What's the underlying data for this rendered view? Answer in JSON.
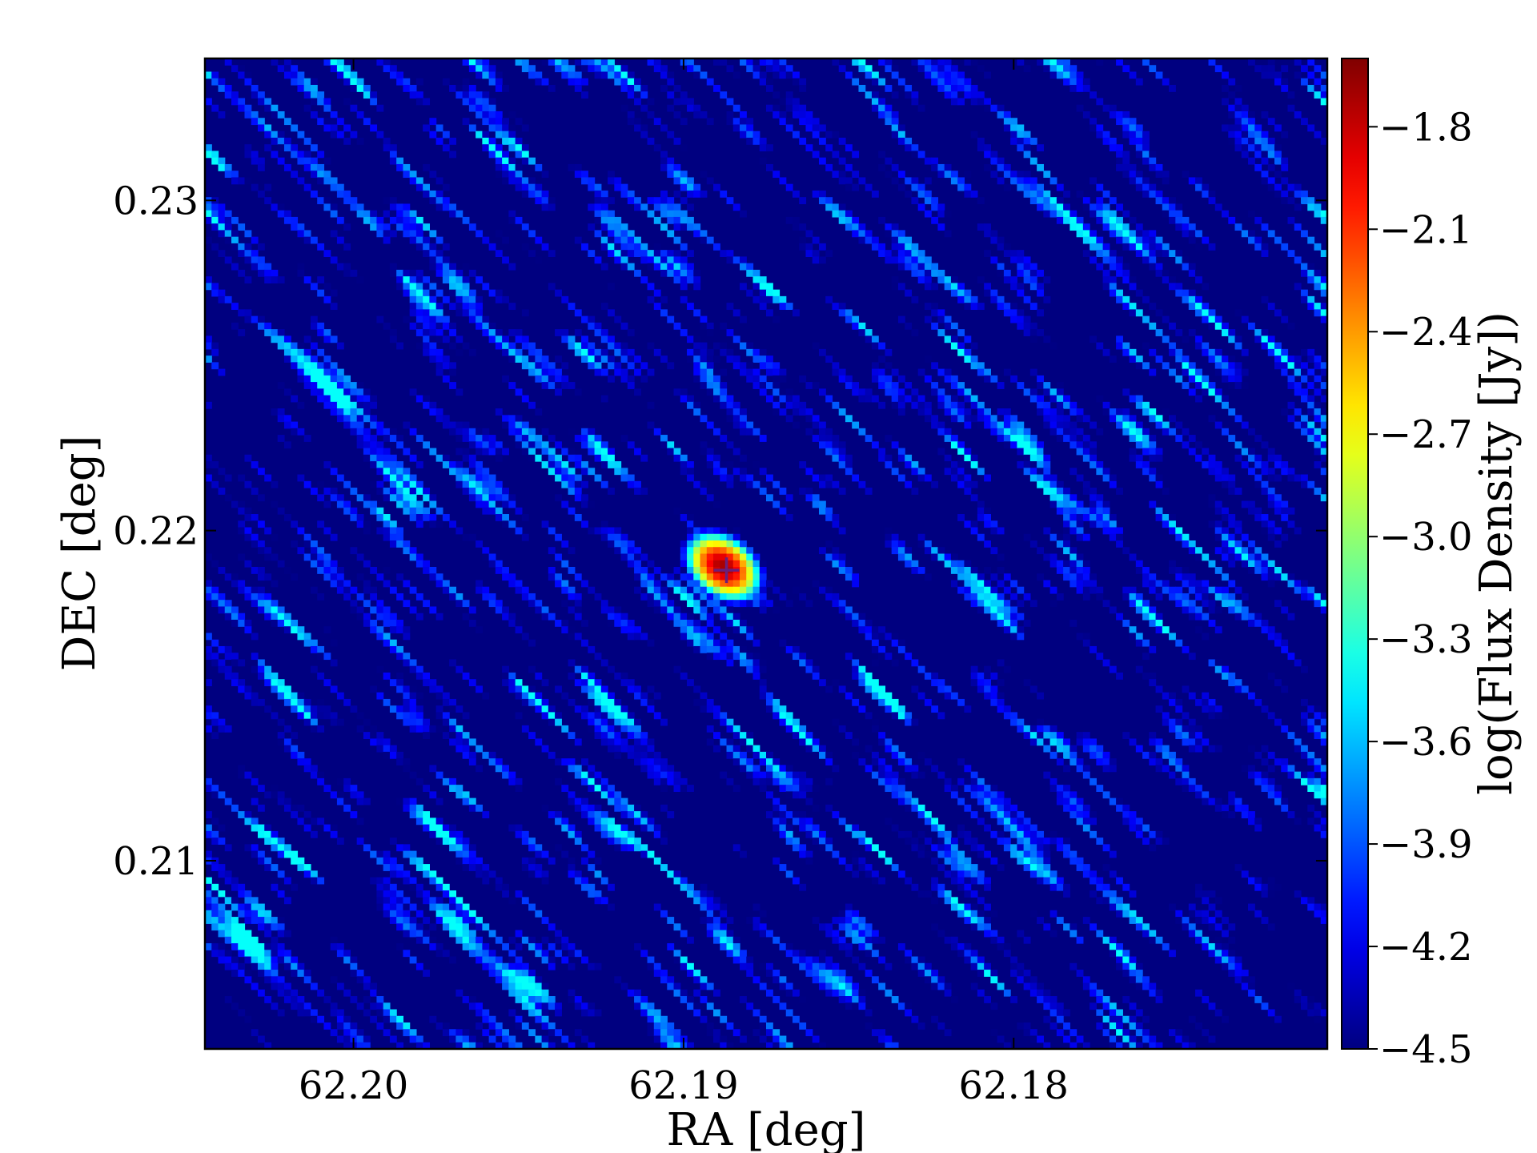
{
  "chart_data": {
    "type": "heatmap",
    "title": "",
    "xlabel": "RA [deg]",
    "ylabel": "DEC [deg]",
    "colorbar_label": "log(Flux Density [Jy])",
    "x_axis_inverted": true,
    "xlim": [
      62.2045,
      62.1705
    ],
    "ylim": [
      0.2043,
      0.2343
    ],
    "xticks": [
      {
        "value": 62.2,
        "label": "62.20"
      },
      {
        "value": 62.19,
        "label": "62.19"
      },
      {
        "value": 62.18,
        "label": "62.18"
      }
    ],
    "yticks": [
      {
        "value": 0.21,
        "label": "0.21"
      },
      {
        "value": 0.22,
        "label": "0.22"
      },
      {
        "value": 0.23,
        "label": "0.23"
      }
    ],
    "colorbar_range": [
      -4.5,
      -1.6
    ],
    "colorbar_ticks": [
      {
        "value": -1.8,
        "label": "−1.8"
      },
      {
        "value": -2.1,
        "label": "−2.1"
      },
      {
        "value": -2.4,
        "label": "−2.4"
      },
      {
        "value": -2.7,
        "label": "−2.7"
      },
      {
        "value": -3.0,
        "label": "−3.0"
      },
      {
        "value": -3.3,
        "label": "−3.3"
      },
      {
        "value": -3.6,
        "label": "−3.6"
      },
      {
        "value": -3.9,
        "label": "−3.9"
      },
      {
        "value": -4.2,
        "label": "−4.2"
      },
      {
        "value": -4.5,
        "label": "−4.5"
      }
    ],
    "colormap": "jet",
    "source_peak": {
      "ra": 62.1888,
      "dec": 0.2189,
      "value": -1.7
    },
    "marker": {
      "ra": 62.1887,
      "dec": 0.2188,
      "shape": "plus",
      "color": "#6b1f7a"
    },
    "background_level": -4.5,
    "noise_peak_level": -3.4,
    "grid": false
  }
}
